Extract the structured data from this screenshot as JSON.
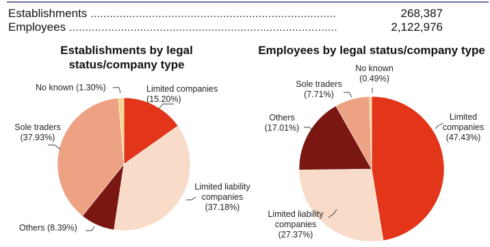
{
  "stats": [
    {
      "label": "Establishments",
      "value": "268,387"
    },
    {
      "label": "Employees",
      "value": "2,122,976"
    }
  ],
  "colors": {
    "limited": "#e2351a",
    "limited_liability": "#f8dcc9",
    "others": "#7b1711",
    "sole_traders": "#eca283",
    "no_known": "#f4d78a"
  },
  "chart_data": [
    {
      "type": "pie",
      "title": "Establishments by legal status/company type",
      "title_lines": [
        "Establishments by legal",
        "status/company type"
      ],
      "slices": [
        {
          "name": "Limited companies",
          "value": 15.2,
          "label_lines": [
            "Limited companies",
            "(15.20%)"
          ],
          "color_key": "limited"
        },
        {
          "name": "Limited liability companies",
          "value": 37.18,
          "label_lines": [
            "Limited liability",
            "companies",
            "(37.18%)"
          ],
          "color_key": "limited_liability"
        },
        {
          "name": "Others",
          "value": 8.39,
          "label_lines": [
            "Others (8.39%)"
          ],
          "color_key": "others"
        },
        {
          "name": "Sole traders",
          "value": 37.93,
          "label_lines": [
            "Sole traders",
            "(37.93%)"
          ],
          "color_key": "sole_traders"
        },
        {
          "name": "No known",
          "value": 1.3,
          "label_lines": [
            "No known (1.30%)"
          ],
          "color_key": "no_known"
        }
      ]
    },
    {
      "type": "pie",
      "title": "Employees by legal status/company type",
      "title_lines": [
        "Employees by legal status/company type"
      ],
      "slices": [
        {
          "name": "Limited companies",
          "value": 47.43,
          "label_lines": [
            "Limited",
            "companies",
            "(47.43%)"
          ],
          "color_key": "limited"
        },
        {
          "name": "Limited liability companies",
          "value": 27.37,
          "label_lines": [
            "Limited liability",
            "companies",
            "(27.37%)"
          ],
          "color_key": "limited_liability"
        },
        {
          "name": "Others",
          "value": 17.01,
          "label_lines": [
            "Others",
            "(17.01%)"
          ],
          "color_key": "others"
        },
        {
          "name": "Sole traders",
          "value": 7.71,
          "label_lines": [
            "Sole traders",
            "(7.71%)"
          ],
          "color_key": "sole_traders"
        },
        {
          "name": "No known",
          "value": 0.49,
          "label_lines": [
            "No known",
            "(0.49%)"
          ],
          "color_key": "no_known"
        }
      ]
    }
  ]
}
